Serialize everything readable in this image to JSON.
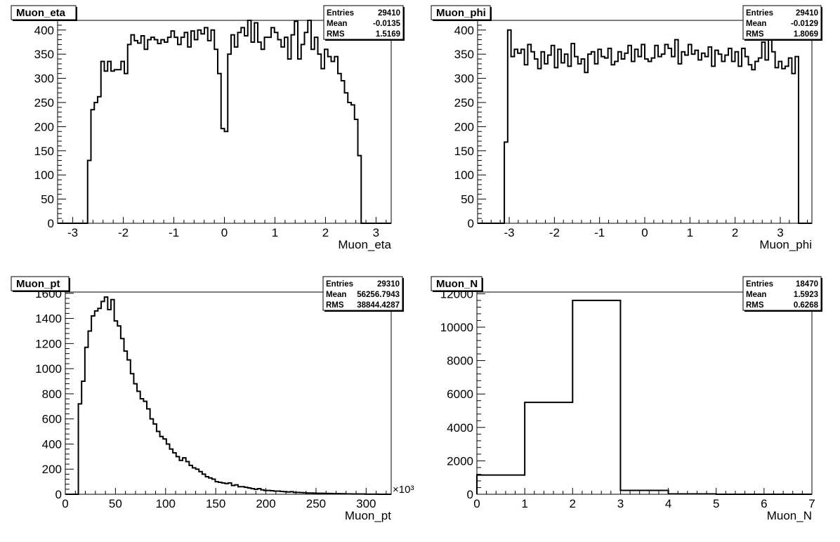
{
  "chart_data": [
    {
      "type": "bar",
      "title": "Muon_eta",
      "xlabel": "Muon_eta",
      "ylabel": "",
      "xlim": [
        -3.3,
        3.3
      ],
      "ylim": [
        0,
        420
      ],
      "xticks": [
        -3,
        -2,
        -1,
        0,
        1,
        2,
        3
      ],
      "yticks": [
        0,
        50,
        100,
        150,
        200,
        250,
        300,
        350,
        400
      ],
      "x_scale_label": "",
      "stats": {
        "entries_label": "Entries",
        "entries": "29410",
        "mean_label": "Mean",
        "mean": "-0.0135",
        "rms_label": "RMS",
        "rms": "1.5169"
      },
      "bins": {
        "low": -3.3,
        "high": 3.3,
        "counts": [
          0,
          0,
          0,
          0,
          0,
          0,
          0,
          0,
          0,
          130,
          235,
          250,
          262,
          335,
          315,
          335,
          315,
          318,
          318,
          335,
          310,
          370,
          390,
          378,
          373,
          388,
          360,
          380,
          385,
          380,
          372,
          380,
          375,
          385,
          398,
          385,
          370,
          385,
          395,
          365,
          398,
          380,
          400,
          392,
          405,
          378,
          400,
          360,
          310,
          196,
          190,
          350,
          390,
          365,
          395,
          405,
          388,
          420,
          375,
          415,
          375,
          360,
          385,
          385,
          405,
          395,
          380,
          365,
          385,
          340,
          390,
          418,
          340,
          370,
          395,
          420,
          360,
          385,
          350,
          320,
          360,
          345,
          335,
          345,
          310,
          295,
          270,
          250,
          245,
          215,
          140,
          0,
          0,
          0,
          0,
          0,
          0,
          0,
          0,
          0
        ]
      }
    },
    {
      "type": "bar",
      "title": "Muon_phi",
      "xlabel": "Muon_phi",
      "ylabel": "",
      "xlim": [
        -3.7,
        3.7
      ],
      "ylim": [
        0,
        420
      ],
      "xticks": [
        -3,
        -2,
        -1,
        0,
        1,
        2,
        3
      ],
      "yticks": [
        0,
        50,
        100,
        150,
        200,
        250,
        300,
        350,
        400
      ],
      "x_scale_label": "",
      "stats": {
        "entries_label": "Entries",
        "entries": "29410",
        "mean_label": "Mean",
        "mean": "-0.0129",
        "rms_label": "RMS",
        "rms": "1.8069"
      },
      "bins": {
        "low": -3.7,
        "high": 3.7,
        "counts": [
          0,
          0,
          0,
          0,
          0,
          0,
          0,
          0,
          168,
          400,
          345,
          360,
          352,
          360,
          328,
          370,
          355,
          340,
          320,
          355,
          330,
          348,
          368,
          322,
          360,
          332,
          350,
          325,
          372,
          345,
          330,
          340,
          312,
          350,
          355,
          330,
          360,
          345,
          342,
          362,
          328,
          335,
          355,
          340,
          352,
          368,
          335,
          360,
          345,
          370,
          340,
          335,
          342,
          368,
          345,
          350,
          370,
          362,
          345,
          380,
          330,
          355,
          348,
          370,
          350,
          358,
          338,
          352,
          345,
          365,
          325,
          358,
          350,
          335,
          348,
          362,
          335,
          355,
          325,
          362,
          345,
          328,
          318,
          335,
          342,
          375,
          338,
          385,
          355,
          322,
          335,
          320,
          325,
          342,
          310,
          345,
          0,
          0,
          0,
          0
        ]
      }
    },
    {
      "type": "bar",
      "title": "Muon_pt",
      "xlabel": "Muon_pt",
      "ylabel": "",
      "xlim": [
        0,
        325
      ],
      "ylim": [
        0,
        1610
      ],
      "xticks": [
        0,
        50,
        100,
        150,
        200,
        250,
        300
      ],
      "yticks": [
        0,
        200,
        400,
        600,
        800,
        1000,
        1200,
        1400,
        1600
      ],
      "x_scale_label": "×10³",
      "stats": {
        "entries_label": "Entries",
        "entries": "29310",
        "mean_label": "Mean",
        "mean": "56256.7943",
        "rms_label": "RMS",
        "rms": "38844.4287"
      },
      "bins": {
        "low": 0,
        "high": 325,
        "counts": [
          0,
          0,
          0,
          0,
          720,
          900,
          1170,
          1300,
          1420,
          1460,
          1480,
          1535,
          1570,
          1470,
          1550,
          1380,
          1340,
          1240,
          1140,
          1070,
          960,
          880,
          820,
          760,
          740,
          680,
          600,
          560,
          500,
          460,
          440,
          400,
          360,
          330,
          300,
          270,
          290,
          260,
          230,
          210,
          200,
          180,
          160,
          140,
          130,
          120,
          100,
          95,
          90,
          85,
          90,
          70,
          75,
          60,
          60,
          55,
          50,
          45,
          40,
          45,
          35,
          30,
          30,
          28,
          25,
          25,
          22,
          20,
          18,
          20,
          15,
          15,
          13,
          12,
          10,
          10,
          9,
          8,
          8,
          7,
          6,
          6,
          5,
          5,
          4,
          4,
          3,
          3,
          2,
          2,
          2,
          2,
          1,
          1,
          1,
          1,
          0,
          0,
          0,
          0
        ]
      }
    },
    {
      "type": "bar",
      "title": "Muon_N",
      "xlabel": "Muon_N",
      "ylabel": "",
      "xlim": [
        0,
        7
      ],
      "ylim": [
        0,
        12100
      ],
      "xticks": [
        0,
        1,
        2,
        3,
        4,
        5,
        6,
        7
      ],
      "yticks": [
        0,
        2000,
        4000,
        6000,
        8000,
        10000,
        12000
      ],
      "x_scale_label": "",
      "stats": {
        "entries_label": "Entries",
        "entries": "18470",
        "mean_label": "Mean",
        "mean": "1.5923",
        "rms_label": "RMS",
        "rms": "0.6268"
      },
      "bins": {
        "low": 0,
        "high": 7,
        "counts": [
          1150,
          5500,
          11600,
          230,
          20,
          0,
          0
        ]
      }
    }
  ]
}
